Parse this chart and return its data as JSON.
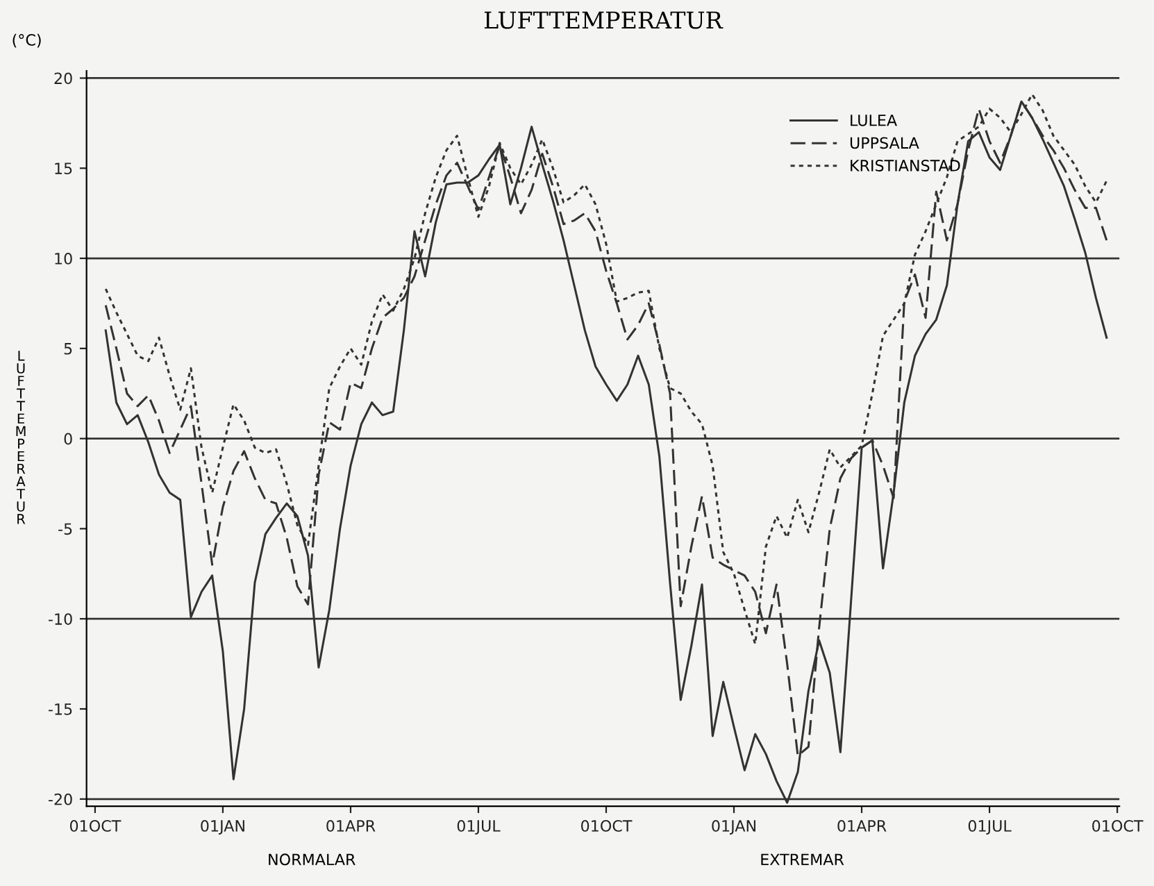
{
  "chart_data": {
    "type": "line",
    "title": "LUFTTEMPERATUR",
    "ylabel": "LUFTTEMPERATUR",
    "annotations": [
      "(°C)",
      "NORMALAR",
      "EXTREMAR"
    ],
    "categories": [
      "01OCT",
      null,
      null,
      null,
      null,
      null,
      null,
      null,
      null,
      null,
      null,
      null,
      "01JAN",
      null,
      null,
      null,
      null,
      null,
      null,
      null,
      null,
      null,
      null,
      null,
      "01APR",
      null,
      null,
      null,
      null,
      null,
      null,
      null,
      null,
      null,
      null,
      null,
      "01JUL",
      null,
      null,
      null,
      null,
      null,
      null,
      null,
      null,
      null,
      null,
      null,
      "01OCT",
      null,
      null,
      null,
      null,
      null,
      null,
      null,
      null,
      null,
      null,
      null,
      "01JAN",
      null,
      null,
      null,
      null,
      null,
      null,
      null,
      null,
      null,
      null,
      null,
      "01APR",
      null,
      null,
      null,
      null,
      null,
      null,
      null,
      null,
      null,
      null,
      null,
      "01JUL",
      null,
      null,
      null,
      null,
      null,
      null,
      null,
      null,
      null,
      null,
      null,
      "01OCT"
    ],
    "ylim": [
      -20.4,
      20.4
    ],
    "yticks": [
      -20,
      -15,
      -10,
      -5,
      0,
      5,
      10,
      15,
      20
    ],
    "ref_lines": [
      {
        "axis": "y",
        "value": -20,
        "color": "#333333"
      },
      {
        "axis": "y",
        "value": -10,
        "color": "#333333"
      },
      {
        "axis": "y",
        "value": 0,
        "color": "#333333"
      },
      {
        "axis": "y",
        "value": 10,
        "color": "#333333"
      },
      {
        "axis": "y",
        "value": 20,
        "color": "#333333"
      }
    ],
    "grid": false,
    "legend": "top right",
    "series": [
      {
        "name": "LULEA",
        "color": "#333333",
        "line_style": "solid",
        "values": [
          null,
          6.0,
          2.0,
          0.8,
          1.3,
          -0.2,
          -2.0,
          -3.0,
          -3.4,
          -9.9,
          -8.5,
          -7.6,
          -11.8,
          -18.9,
          -15.0,
          -8.0,
          -5.3,
          -4.4,
          -3.6,
          -4.3,
          -6.5,
          -12.7,
          -9.5,
          -5.0,
          -1.5,
          0.8,
          2.0,
          1.3,
          1.5,
          6.0,
          11.5,
          9.0,
          12.0,
          14.1,
          14.2,
          14.2,
          14.6,
          15.5,
          16.3,
          13.0,
          15.0,
          17.3,
          15.2,
          13.2,
          11.0,
          8.5,
          6.0,
          4.0,
          3.0,
          2.1,
          3.0,
          4.6,
          3.0,
          -1.0,
          -8.0,
          -14.5,
          -11.5,
          -8.1,
          -16.5,
          -13.5,
          -16.0,
          -18.4,
          -16.4,
          -17.5,
          -19.0,
          -20.2,
          -18.5,
          -14.0,
          -11.2,
          -13.0,
          -17.4,
          -9.0,
          -0.5,
          -0.1,
          -7.2,
          -3.0,
          2.0,
          4.6,
          5.8,
          6.6,
          8.5,
          13.0,
          16.5,
          17.0,
          15.6,
          14.9,
          16.8,
          18.7,
          17.8,
          16.6,
          15.3,
          14.0,
          12.2,
          10.3,
          7.8,
          5.6,
          null
        ]
      },
      {
        "name": "UPPSALA",
        "color": "#333333",
        "line_style": "dashed",
        "values": [
          null,
          7.4,
          5.0,
          2.5,
          1.8,
          2.4,
          1.0,
          -0.8,
          0.5,
          1.8,
          -2.5,
          -7.0,
          -3.8,
          -1.8,
          -0.7,
          -2.2,
          -3.4,
          -3.6,
          -5.5,
          -8.2,
          -9.2,
          -2.0,
          0.9,
          0.5,
          3.1,
          2.8,
          5.0,
          6.7,
          7.2,
          7.8,
          9.0,
          11.0,
          13.0,
          14.6,
          15.3,
          14.0,
          12.7,
          14.5,
          16.3,
          14.5,
          12.5,
          13.8,
          15.8,
          14.0,
          11.9,
          12.1,
          12.5,
          11.5,
          9.3,
          7.5,
          5.5,
          6.3,
          7.5,
          5.2,
          2.5,
          -9.3,
          -6.0,
          -3.2,
          -6.6,
          -7.0,
          -7.3,
          -7.6,
          -8.5,
          -10.8,
          -8.1,
          -12.5,
          -17.6,
          -17.1,
          -10.5,
          -5.0,
          -2.2,
          -1.1,
          -0.5,
          -0.1,
          -1.5,
          -3.3,
          7.6,
          9.1,
          6.7,
          13.7,
          11.0,
          13.0,
          16.0,
          18.3,
          16.5,
          15.3,
          16.8,
          18.7,
          17.8,
          16.8,
          16.0,
          15.0,
          13.8,
          12.8,
          12.8,
          11.0,
          null
        ]
      },
      {
        "name": "KRISTIANSTAD",
        "color": "#333333",
        "line_style": "dotted",
        "values": [
          null,
          8.3,
          7.0,
          5.8,
          4.6,
          4.3,
          5.6,
          3.5,
          1.6,
          3.9,
          -0.5,
          -3.0,
          -0.5,
          1.9,
          1.0,
          -0.5,
          -0.8,
          -0.6,
          -2.5,
          -4.8,
          -5.9,
          -1.5,
          2.8,
          4.0,
          5.0,
          4.1,
          6.5,
          8.0,
          7.1,
          8.3,
          10.0,
          12.5,
          14.5,
          16.0,
          16.8,
          14.5,
          12.3,
          14.0,
          16.4,
          15.0,
          14.1,
          15.2,
          16.6,
          15.0,
          13.1,
          13.5,
          14.1,
          13.0,
          10.8,
          7.6,
          7.8,
          8.1,
          8.2,
          5.0,
          2.8,
          2.5,
          1.5,
          0.8,
          -1.5,
          -6.3,
          -7.5,
          -9.5,
          -11.4,
          -6.0,
          -4.3,
          -5.5,
          -3.4,
          -5.2,
          -3.0,
          -0.6,
          -1.6,
          -1.0,
          -0.4,
          2.5,
          5.7,
          6.6,
          7.5,
          10.2,
          11.5,
          13.0,
          14.5,
          16.5,
          16.9,
          17.3,
          18.3,
          17.8,
          17.0,
          18.0,
          19.1,
          18.2,
          16.8,
          16.0,
          15.2,
          14.0,
          13.1,
          14.3,
          null
        ]
      }
    ]
  }
}
